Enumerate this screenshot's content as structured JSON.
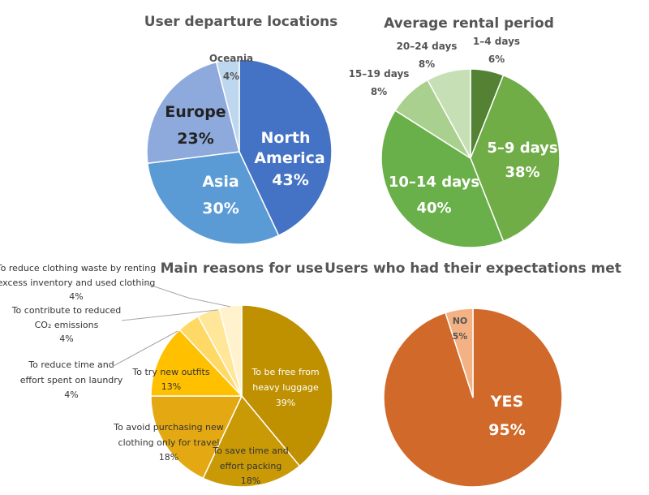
{
  "chart_data": [
    {
      "type": "pie",
      "title": "User departure locations",
      "slices": [
        {
          "label": "North America",
          "value": 43,
          "value_label": "43%",
          "color": "#4472C4"
        },
        {
          "label": "Asia",
          "value": 30,
          "value_label": "30%",
          "color": "#5B9BD5"
        },
        {
          "label": "Europe",
          "value": 23,
          "value_label": "23%",
          "color": "#8EA9DB"
        },
        {
          "label": "Oceania",
          "value": 4,
          "value_label": "4%",
          "color": "#BDD7EE"
        }
      ]
    },
    {
      "type": "pie",
      "title": "Average rental period",
      "slices": [
        {
          "label": "1–4 days",
          "value": 6,
          "value_label": "6%",
          "color": "#548235"
        },
        {
          "label": "5–9 days",
          "value": 38,
          "value_label": "38%",
          "color": "#70AD47"
        },
        {
          "label": "10–14 days",
          "value": 40,
          "value_label": "40%",
          "color": "#6AB04A"
        },
        {
          "label": "15–19 days",
          "value": 8,
          "value_label": "8%",
          "color": "#A9D08E"
        },
        {
          "label": "20–24 days",
          "value": 8,
          "value_label": "8%",
          "color": "#C6DFB5"
        }
      ]
    },
    {
      "type": "pie",
      "title": "Main reasons for use",
      "slices": [
        {
          "label": "To be free from heavy luggage",
          "value": 39,
          "value_label": "39%",
          "color": "#BF9000"
        },
        {
          "label": "To save time and effort packing",
          "value": 18,
          "value_label": "18%",
          "color": "#C99A06"
        },
        {
          "label": "To avoid purchasing new clothing only for travel",
          "value": 18,
          "value_label": "18%",
          "color": "#E3A812"
        },
        {
          "label": "To try new outfits",
          "value": 13,
          "value_label": "13%",
          "color": "#FFC000"
        },
        {
          "label": "To reduce time and effort spent on laundry",
          "value": 4,
          "value_label": "4%",
          "color": "#FFD966"
        },
        {
          "label": "To contribute to reduced CO₂ emissions",
          "value": 4,
          "value_label": "4%",
          "color": "#FFE699"
        },
        {
          "label": "To reduce clothing waste by renting excess inventory and used clothing",
          "value": 4,
          "value_label": "4%",
          "color": "#FFF2CC"
        }
      ]
    },
    {
      "type": "pie",
      "title": "Users who had their expectations met",
      "slices": [
        {
          "label": "YES",
          "value": 95,
          "value_label": "95%",
          "color": "#D0692A"
        },
        {
          "label": "NO",
          "value": 5,
          "value_label": "5%",
          "color": "#F4B183"
        }
      ]
    }
  ]
}
